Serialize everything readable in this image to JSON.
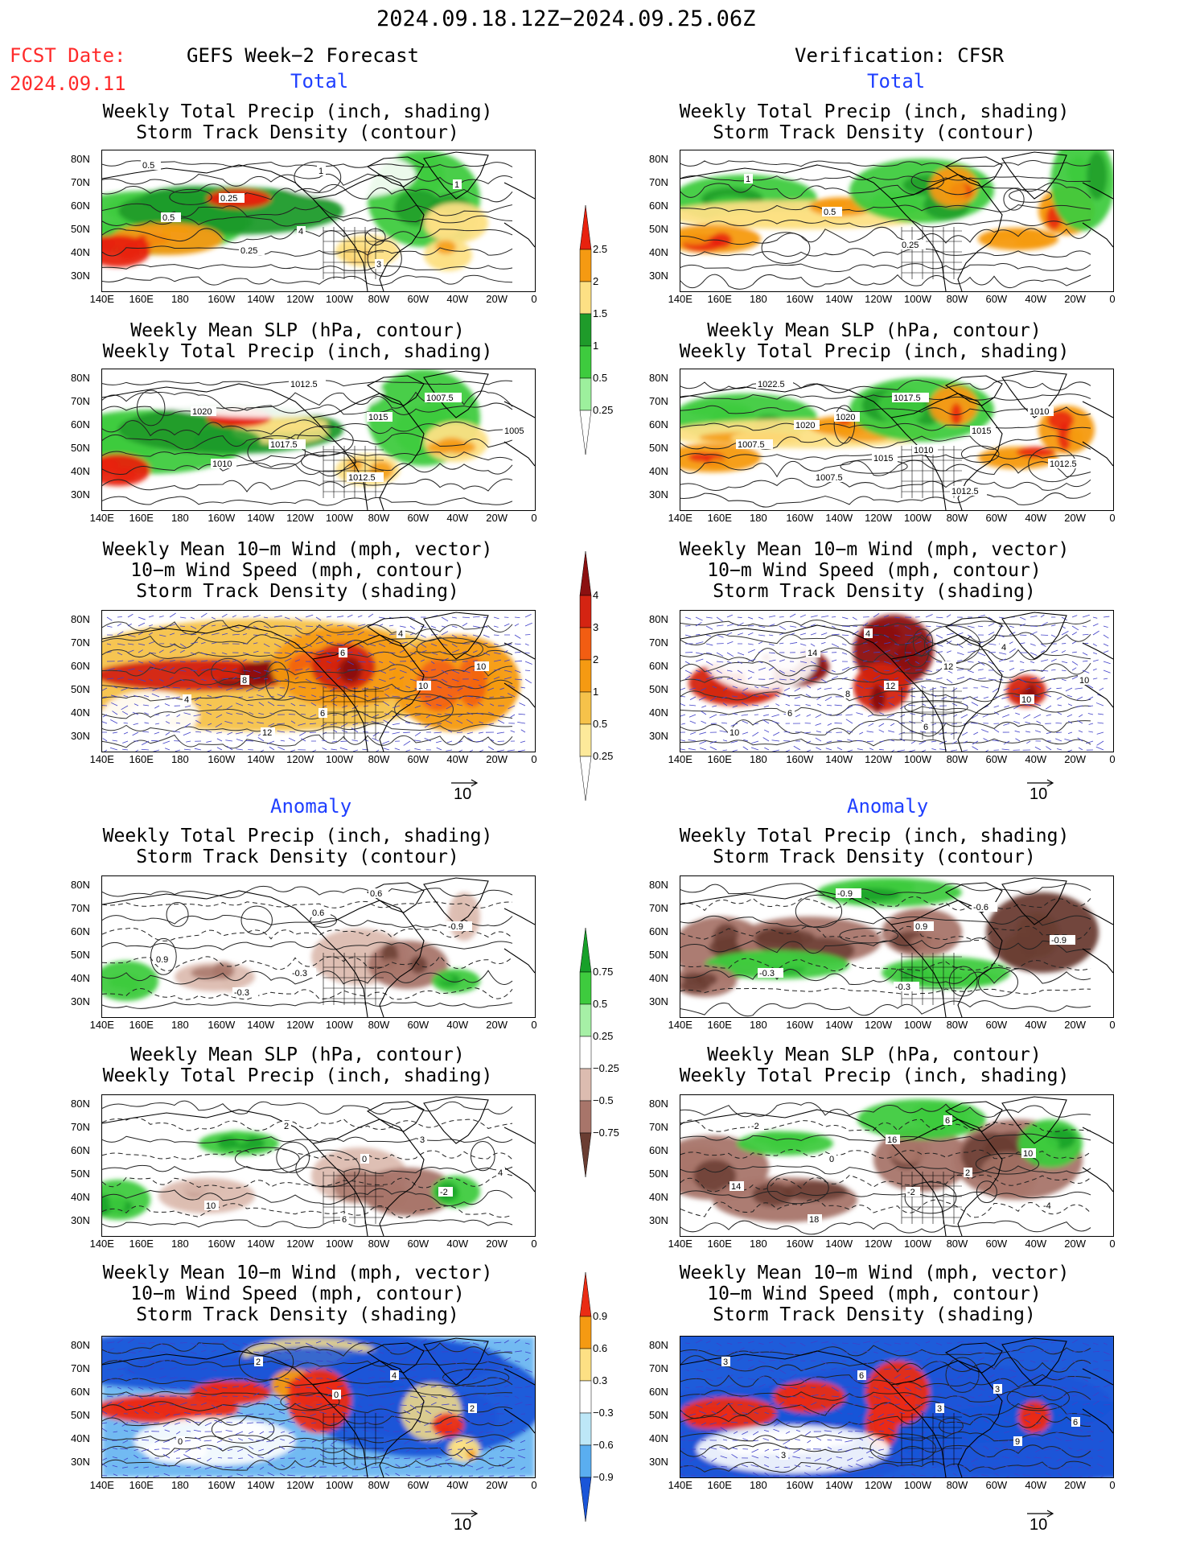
{
  "header": {
    "date_range": "2024.09.18.12Z−2024.09.25.06Z",
    "fcst_label": "FCST Date:",
    "fcst_date": "2024.09.11",
    "left_title": "GEFS Week−2 Forecast",
    "right_title": "Verification: CFSR",
    "section_total": "Total",
    "section_anomaly": "Anomaly"
  },
  "titles": {
    "precip_track": [
      "Weekly Total Precip (inch, shading)",
      "Storm Track Density (contour)"
    ],
    "slp_precip": [
      "Weekly Mean SLP (hPa, contour)",
      "Weekly Total Precip (inch, shading)"
    ],
    "wind_track": [
      "Weekly Mean 10−m Wind (mph, vector)",
      "10−m Wind Speed (mph, contour)",
      "Storm Track Density (shading)"
    ]
  },
  "axes": {
    "lat_labels": [
      "80N",
      "70N",
      "60N",
      "50N",
      "40N",
      "30N"
    ],
    "lon_labels": [
      "140E",
      "160E",
      "180",
      "160W",
      "140W",
      "120W",
      "100W",
      "80W",
      "60W",
      "40W",
      "20W",
      "0"
    ]
  },
  "vector_ref": "10",
  "colorbars": {
    "precip_total": {
      "labels": [
        "2.5",
        "2",
        "1.5",
        "1",
        "0.5",
        "0.25"
      ],
      "colors": [
        "#e8220e",
        "#f59a12",
        "#fde084",
        "#1f9b2a",
        "#3ecb3e",
        "#9df09d",
        "#ffffff"
      ]
    },
    "track_total": {
      "labels": [
        "4",
        "3",
        "2",
        "1",
        "0.5",
        "0.25"
      ],
      "colors": [
        "#8b1010",
        "#d42412",
        "#f25d12",
        "#f59a12",
        "#f6c24a",
        "#fde99a",
        "#ffffff"
      ]
    },
    "precip_anom": {
      "labels": [
        "0.75",
        "0.5",
        "0.25",
        "−0.25",
        "−0.5",
        "−0.75"
      ],
      "colors": [
        "#17a029",
        "#3ecb3e",
        "#a6f0a6",
        "#ffffff",
        "#dcbcb0",
        "#a8756a",
        "#6a3d32"
      ]
    },
    "track_anom": {
      "labels": [
        "0.9",
        "0.6",
        "0.3",
        "−0.3",
        "−0.6",
        "−0.9"
      ],
      "colors": [
        "#ea2c14",
        "#f59a12",
        "#fde084",
        "#ffffff",
        "#bde7f7",
        "#5aaef0",
        "#1a55d8"
      ]
    }
  },
  "chart_data": [
    {
      "type": "heatmap",
      "panel": "forecast-total-precip-track",
      "title": "Weekly Total Precip (inch, shading) / Storm Track Density (contour)",
      "contour_labels": [
        "0.5",
        "0.25",
        "4",
        "3",
        "1",
        "0.5",
        "0.25",
        "1"
      ]
    },
    {
      "type": "heatmap",
      "panel": "verification-total-precip-track",
      "title": "Weekly Total Precip (inch, shading) / Storm Track Density (contour)",
      "contour_labels": [
        "1",
        "0.5",
        "0.25"
      ]
    },
    {
      "type": "heatmap",
      "panel": "forecast-total-slp-precip",
      "title": "Weekly Mean SLP (hPa, contour) / Weekly Total Precip (inch, shading)",
      "contour_labels": [
        "1020",
        "1017.5",
        "1012.5",
        "1007.5",
        "1005",
        "1010",
        "1012.5",
        "1015"
      ]
    },
    {
      "type": "heatmap",
      "panel": "verification-total-slp-precip",
      "title": "Weekly Mean SLP (hPa, contour) / Weekly Total Precip (inch, shading)",
      "contour_labels": [
        "1020",
        "1015",
        "1012.5",
        "1010",
        "1007.5",
        "1007.5",
        "1017.5",
        "1015",
        "1012.5",
        "1022.5",
        "1020",
        "1010"
      ]
    },
    {
      "type": "heatmap",
      "panel": "forecast-total-wind-track",
      "title": "Weekly Mean 10-m Wind / 10-m Wind Speed / Storm Track Density",
      "contour_labels": [
        "8",
        "6",
        "4",
        "10",
        "4",
        "12",
        "6",
        "10"
      ]
    },
    {
      "type": "heatmap",
      "panel": "verification-total-wind-track",
      "title": "Weekly Mean 10-m Wind / 10-m Wind Speed / Storm Track Density",
      "contour_labels": [
        "8",
        "6",
        "4",
        "10",
        "6",
        "4",
        "12",
        "10",
        "10",
        "14",
        "12"
      ]
    },
    {
      "type": "heatmap",
      "panel": "forecast-anomaly-precip-track",
      "title": "Weekly Total Precip (inch, shading) / Storm Track Density (contour) anomaly",
      "contour_labels": [
        "-0.3",
        "0.6",
        "-0.9",
        "0.9",
        "-0.3",
        "0.6"
      ]
    },
    {
      "type": "heatmap",
      "panel": "verification-anomaly-precip-track",
      "title": "Weekly Total Precip (inch, shading) / Storm Track Density (contour) anomaly",
      "contour_labels": [
        "-0.3",
        "-0.6",
        "-0.9",
        "-0.3",
        "-0.9",
        "0.9"
      ]
    },
    {
      "type": "heatmap",
      "panel": "forecast-anomaly-slp-precip",
      "title": "Weekly Mean SLP (hPa, contour) / Weekly Total Precip (inch, shading) anomaly",
      "contour_labels": [
        "6",
        "3",
        "4",
        "10",
        "2",
        "0",
        "-2"
      ]
    },
    {
      "type": "heatmap",
      "panel": "verification-anomaly-slp-precip",
      "title": "Weekly Mean SLP (hPa, contour) / Weekly Total Precip (inch, shading) anomaly",
      "contour_labels": [
        "6",
        "10",
        "14",
        "18",
        "16",
        "2",
        "-4",
        "-2",
        "0",
        "-2"
      ]
    },
    {
      "type": "heatmap",
      "panel": "forecast-anomaly-wind-track",
      "title": "Weekly Mean 10-m Wind / 10-m Wind Speed / Storm Track Density anomaly",
      "contour_labels": [
        "4",
        "2",
        "0",
        "2",
        "0"
      ]
    },
    {
      "type": "heatmap",
      "panel": "verification-anomaly-wind-track",
      "title": "Weekly Mean 10-m Wind / 10-m Wind Speed / Storm Track Density anomaly",
      "contour_labels": [
        "3",
        "6",
        "3",
        "6",
        "3",
        "9",
        "3"
      ]
    }
  ]
}
